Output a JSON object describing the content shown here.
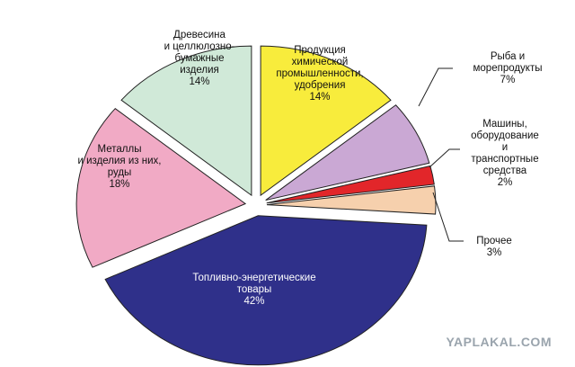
{
  "chart_data": {
    "type": "pie",
    "categories": [
      "Продукция\nхимической\nпромышленности,\nудобрения",
      "Рыба и\nморепродукты",
      "Машины,\nоборудование\nи транспортные\nсредства",
      "Прочее",
      "Топливно-энергетические\nтовары",
      "Металлы\nи изделия из них,\nруды",
      "Древесина\nи целлюлозно-\nбумажные\nизделия"
    ],
    "values": [
      14,
      7,
      2,
      3,
      42,
      18,
      14
    ],
    "value_labels": [
      "14%",
      "7%",
      "2%",
      "3%",
      "42%",
      "18%",
      "14%"
    ],
    "colors": [
      "#f8ec3c",
      "#caa8d4",
      "#e2262a",
      "#f6d0ad",
      "#2f308a",
      "#f1aac5",
      "#d0e9d8"
    ],
    "watermark": "YAPLAKAL.COM"
  }
}
